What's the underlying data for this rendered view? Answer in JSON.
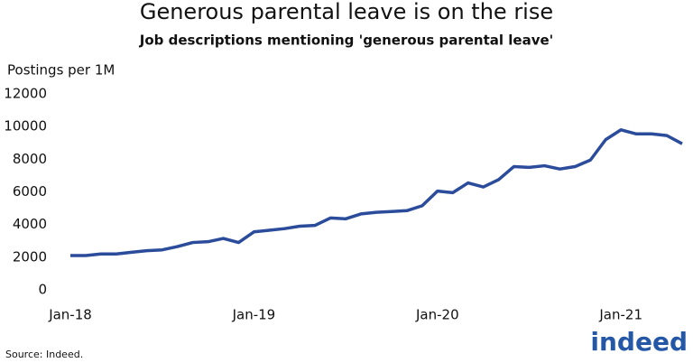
{
  "chart_data": {
    "type": "line",
    "title": "Generous parental leave is on the rise",
    "subtitle": "Job descriptions mentioning 'generous parental leave'",
    "y_label": "Postings per 1M",
    "source": "Source: Indeed.",
    "logo": "indeed",
    "categories": [
      "Jan-18",
      null,
      null,
      null,
      null,
      null,
      null,
      null,
      null,
      null,
      null,
      null,
      "Jan-19",
      null,
      null,
      null,
      null,
      null,
      null,
      null,
      null,
      null,
      null,
      null,
      "Jan-20",
      null,
      null,
      null,
      null,
      null,
      null,
      null,
      null,
      null,
      null,
      null,
      "Jan-21",
      null,
      null,
      null,
      null
    ],
    "series": [
      {
        "name": "Postings per 1M",
        "color": "#2b4c9b",
        "values": [
          2100,
          2100,
          2200,
          2200,
          2300,
          2400,
          2450,
          2650,
          2900,
          2950,
          3150,
          2900,
          3550,
          3650,
          3750,
          3900,
          3950,
          4400,
          4350,
          4650,
          4750,
          4800,
          4850,
          5150,
          6050,
          5950,
          6550,
          6300,
          6750,
          7550,
          7500,
          7600,
          7400,
          7550,
          7950,
          9200,
          9800,
          9550,
          9550,
          9450,
          8950
        ]
      }
    ],
    "ylim": [
      0,
      12000
    ],
    "yticks": [
      0,
      2000,
      4000,
      6000,
      8000,
      10000,
      12000
    ],
    "grid": false
  }
}
